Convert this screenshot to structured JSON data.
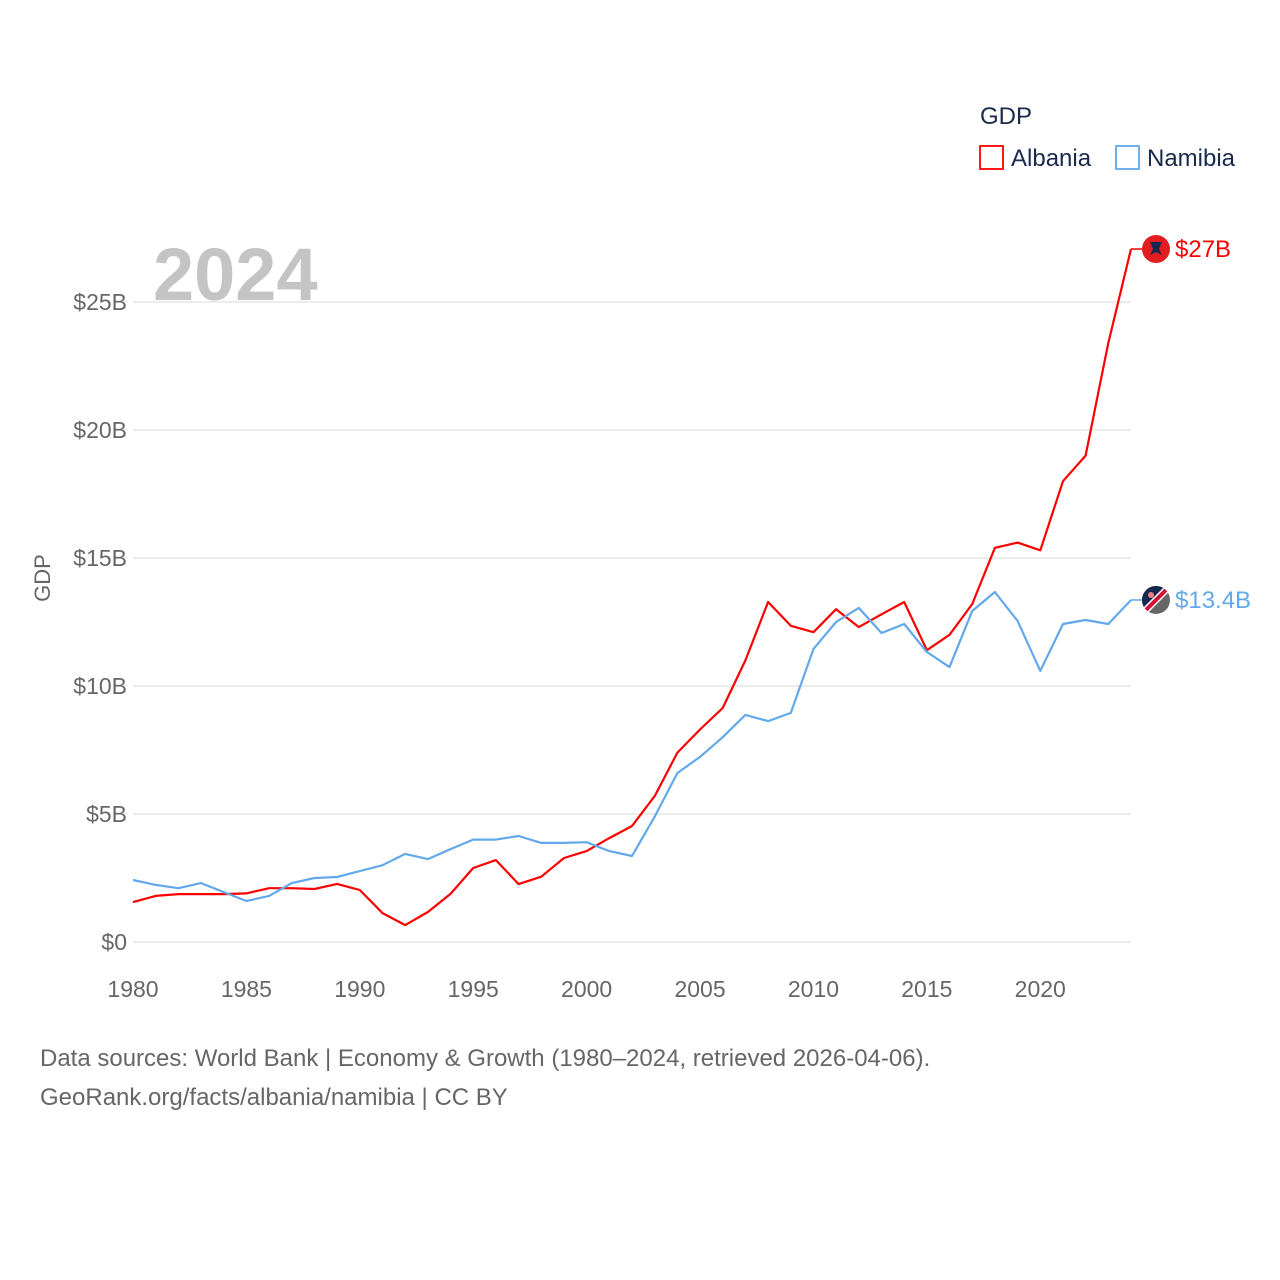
{
  "chart_data": {
    "type": "line",
    "title": "GDP",
    "ylabel": "GDP",
    "xlabel": "",
    "current_year_label": "2024",
    "ylim": [
      0,
      27.5
    ],
    "xlim": [
      1980,
      2024
    ],
    "y_ticks": [
      0,
      5,
      10,
      15,
      20,
      25
    ],
    "y_tick_labels": [
      "$0",
      "$5B",
      "$10B",
      "$15B",
      "$20B",
      "$25B"
    ],
    "x_ticks": [
      1980,
      1985,
      1990,
      1995,
      2000,
      2005,
      2010,
      2015,
      2020
    ],
    "x_tick_labels": [
      "1980",
      "1985",
      "1990",
      "1995",
      "2000",
      "2005",
      "2010",
      "2015",
      "2020"
    ],
    "grid": true,
    "legend_position": "top-right",
    "unit": "billion USD",
    "x": [
      1980,
      1981,
      1982,
      1983,
      1984,
      1985,
      1986,
      1987,
      1988,
      1989,
      1990,
      1991,
      1992,
      1993,
      1994,
      1995,
      1996,
      1997,
      1998,
      1999,
      2000,
      2001,
      2002,
      2003,
      2004,
      2005,
      2006,
      2007,
      2008,
      2009,
      2010,
      2011,
      2012,
      2013,
      2014,
      2015,
      2016,
      2017,
      2018,
      2019,
      2020,
      2021,
      2022,
      2023,
      2024
    ],
    "series": [
      {
        "name": "Albania",
        "color": "#ff0000",
        "end_label": "$27B",
        "values": [
          1.56,
          1.8,
          1.87,
          1.87,
          1.87,
          1.9,
          2.1,
          2.1,
          2.07,
          2.27,
          2.03,
          1.13,
          0.66,
          1.17,
          1.88,
          2.89,
          3.2,
          2.26,
          2.55,
          3.28,
          3.55,
          4.06,
          4.53,
          5.7,
          7.4,
          8.3,
          9.14,
          11.0,
          13.28,
          12.35,
          12.1,
          13.0,
          12.3,
          12.8,
          13.28,
          11.4,
          12.0,
          13.2,
          15.4,
          15.6,
          15.3,
          18.0,
          19.0,
          23.4,
          27.07
        ]
      },
      {
        "name": "Namibia",
        "color": "#62a8ea",
        "end_label": "$13.4B",
        "values": [
          2.42,
          2.23,
          2.1,
          2.3,
          1.95,
          1.6,
          1.8,
          2.3,
          2.5,
          2.54,
          2.77,
          3.0,
          3.44,
          3.24,
          3.63,
          4.0,
          4.0,
          4.14,
          3.87,
          3.87,
          3.9,
          3.55,
          3.36,
          4.9,
          6.6,
          7.23,
          8.0,
          8.87,
          8.63,
          8.95,
          11.45,
          12.5,
          13.05,
          12.07,
          12.42,
          11.33,
          10.74,
          12.93,
          13.67,
          12.54,
          10.59,
          12.42,
          12.58,
          12.42,
          13.36
        ]
      }
    ]
  },
  "footer": {
    "line1": "Data sources: World Bank | Economy & Growth (1980–2024, retrieved 2026-04-06).",
    "line2": "GeoRank.org/facts/albania/namibia | CC BY"
  }
}
